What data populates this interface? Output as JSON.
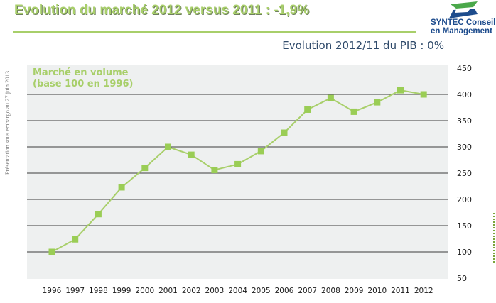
{
  "header": {
    "title": "Evolution du marché 2012 versus 2011 : -1,9%",
    "subtitle": "Evolution 2012/11 du PIB : 0%",
    "side_note": "Présentation sous embargo au 27 juin 2013"
  },
  "logo": {
    "line1": "SYNTEC Conseil",
    "line2": "en Management"
  },
  "colors": {
    "accent": "#a8cf6a",
    "line": "#a8cf6a",
    "marker": "#9acd55",
    "grid": "#000000",
    "plot_bg": "#eef0f0",
    "logo_blue": "#1d4c8d",
    "logo_green": "#4aa84a"
  },
  "chart_data": {
    "type": "line",
    "series_label_lines": [
      "Marché en volume",
      "(base 100 en 1996)"
    ],
    "categories": [
      "1996",
      "1997",
      "1998",
      "1999",
      "2000",
      "2001",
      "2002",
      "2003",
      "2004",
      "2005",
      "2006",
      "2007",
      "2008",
      "2009",
      "2010",
      "2011",
      "2012"
    ],
    "series": [
      {
        "name": "Marché en volume (base 100 en 1996)",
        "values": [
          100,
          124,
          172,
          223,
          260,
          300,
          285,
          256,
          267,
          292,
          327,
          371,
          393,
          367,
          385,
          408,
          400
        ]
      }
    ],
    "ylim": [
      50,
      450
    ],
    "yticks": [
      450,
      400,
      350,
      300,
      250,
      200,
      150,
      100,
      50
    ],
    "grid": true,
    "axis_position": "right"
  }
}
